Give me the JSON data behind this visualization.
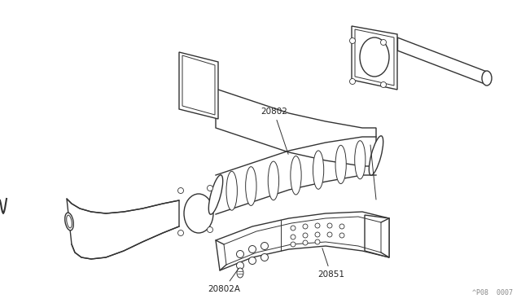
{
  "bg_color": "#ffffff",
  "line_color": "#333333",
  "label_color": "#222222",
  "watermark": "^P08  0007",
  "fig_width": 6.4,
  "fig_height": 3.72,
  "dpi": 100
}
